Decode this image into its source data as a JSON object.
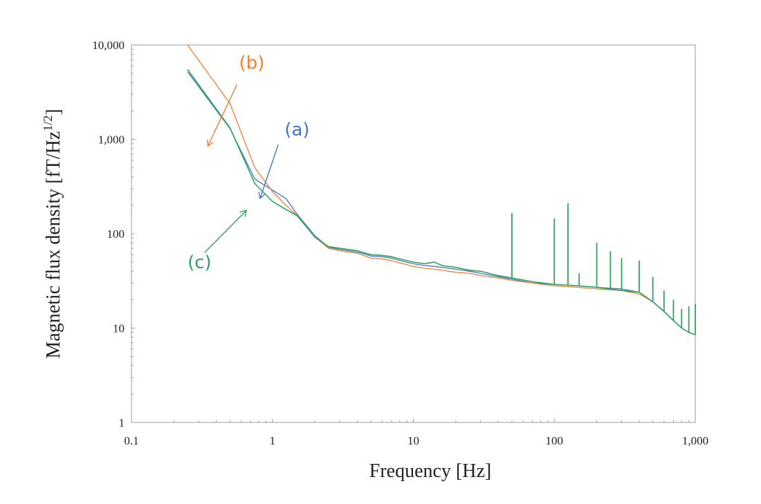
{
  "chart_data": {
    "type": "line",
    "title": "",
    "xlabel": "Frequency [Hz]",
    "ylabel": "Magnetic flux density [fT/Hz",
    "ylabel_sup": "1/2",
    "ylabel_close": "]",
    "xscale": "log",
    "yscale": "log",
    "xlim": [
      0.1,
      1000
    ],
    "ylim": [
      1,
      10000
    ],
    "grid": false,
    "legend": "none",
    "x_ticks": [
      0.1,
      1,
      10,
      100,
      1000
    ],
    "x_tick_labels": [
      "0.1",
      "1",
      "10",
      "100",
      "1,000"
    ],
    "y_ticks": [
      1,
      10,
      100,
      1000,
      10000
    ],
    "y_tick_labels": [
      "1",
      "10",
      "100",
      "1,000",
      "10,000"
    ],
    "series": [
      {
        "name": "(a)",
        "color": "#4472C4",
        "x": [
          0.25,
          0.5,
          0.75,
          1.0,
          1.25,
          1.5,
          2,
          2.5,
          3,
          4,
          5,
          6,
          7,
          8,
          10,
          12,
          14,
          16,
          20,
          25,
          30,
          40,
          50,
          70,
          100,
          150,
          200,
          300,
          400,
          500,
          600,
          700,
          800,
          900,
          1000
        ],
        "y": [
          5200,
          1300,
          380,
          290,
          235,
          160,
          95,
          72,
          68,
          64,
          58,
          57,
          55,
          52,
          48,
          46,
          45,
          44,
          42,
          40,
          38,
          35,
          33,
          30,
          29,
          28,
          27,
          26,
          24,
          19,
          15,
          12,
          10,
          9,
          8.5
        ]
      },
      {
        "name": "(b)",
        "color": "#ED7D31",
        "x": [
          0.25,
          0.5,
          0.75,
          1.0,
          1.25,
          1.5,
          2,
          2.5,
          3,
          4,
          5,
          6,
          7,
          8,
          10,
          12,
          14,
          16,
          20,
          25,
          30,
          40,
          50,
          70,
          100,
          150,
          200,
          300,
          400,
          500,
          600,
          700,
          800,
          900,
          1000
        ],
        "y": [
          10000,
          2400,
          500,
          280,
          200,
          155,
          92,
          70,
          66,
          62,
          55,
          54,
          52,
          49,
          45,
          43,
          42,
          41,
          39,
          38,
          36,
          34,
          32,
          30,
          28,
          27,
          26,
          25,
          23,
          19,
          15,
          12,
          10,
          9,
          8.5
        ]
      },
      {
        "name": "(c)",
        "color": "#2CA55A",
        "x": [
          0.25,
          0.5,
          0.75,
          1.0,
          1.25,
          1.5,
          2,
          2.5,
          3,
          4,
          5,
          6,
          7,
          8,
          10,
          12,
          14,
          16,
          20,
          25,
          30,
          40,
          50,
          70,
          100,
          150,
          200,
          300,
          400,
          500,
          600,
          700,
          800,
          900,
          1000
        ],
        "y": [
          5500,
          1320,
          340,
          220,
          180,
          155,
          92,
          73,
          70,
          66,
          60,
          59,
          57,
          54,
          50,
          48,
          50,
          46,
          44,
          41,
          40,
          36,
          34,
          31,
          29,
          28,
          27,
          25,
          24,
          19,
          15,
          12,
          10,
          9,
          8.5
        ]
      }
    ],
    "spikes": [
      {
        "x": 50,
        "y": 165
      },
      {
        "x": 100,
        "y": 145
      },
      {
        "x": 125,
        "y": 210
      },
      {
        "x": 150,
        "y": 38
      },
      {
        "x": 200,
        "y": 80
      },
      {
        "x": 250,
        "y": 65
      },
      {
        "x": 300,
        "y": 55
      },
      {
        "x": 400,
        "y": 52
      },
      {
        "x": 500,
        "y": 35
      },
      {
        "x": 600,
        "y": 25
      },
      {
        "x": 700,
        "y": 20
      },
      {
        "x": 800,
        "y": 16
      },
      {
        "x": 900,
        "y": 17
      },
      {
        "x": 1000,
        "y": 18
      }
    ],
    "annotations": [
      {
        "text": "(a)",
        "color": "#4472C4",
        "text_x": 1.22,
        "text_y": 1100,
        "arrow_from": [
          1.1,
          880
        ],
        "arrow_to": [
          0.82,
          240
        ]
      },
      {
        "text": "(b)",
        "color": "#ED7D31",
        "text_x": 0.58,
        "text_y": 5600,
        "arrow_from": [
          0.56,
          3800
        ],
        "arrow_to": [
          0.35,
          860
        ]
      },
      {
        "text": "(c)",
        "color": "#2CA55A",
        "text_x": 0.25,
        "text_y": 43,
        "arrow_from": [
          0.33,
          63
        ],
        "arrow_to": [
          0.65,
          175
        ]
      }
    ]
  }
}
